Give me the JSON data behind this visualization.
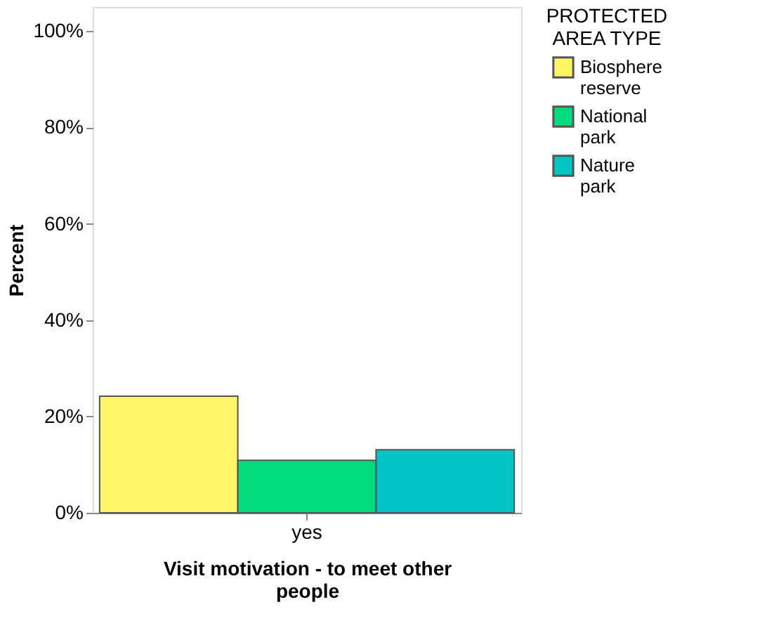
{
  "chart_data": {
    "type": "bar",
    "xlabel": "Visit motivation - to meet other people",
    "ylabel": "Percent",
    "legend_title": "PROTECTED AREA TYPE",
    "categories": [
      "yes"
    ],
    "series": [
      {
        "name": "Biosphere reserve",
        "color": "#fdf566",
        "values": [
          24.2
        ]
      },
      {
        "name": "National park",
        "color": "#00dc7d",
        "values": [
          10.9
        ]
      },
      {
        "name": "Nature park",
        "color": "#00c3c4",
        "values": [
          13.1
        ]
      }
    ],
    "ylim": [
      0,
      105
    ],
    "yticks": [
      {
        "value": 0,
        "label": "0%"
      },
      {
        "value": 20,
        "label": "20%"
      },
      {
        "value": 40,
        "label": "40%"
      },
      {
        "value": 60,
        "label": "60%"
      },
      {
        "value": 80,
        "label": "80%"
      },
      {
        "value": 100,
        "label": "100%"
      }
    ],
    "grid": false,
    "legend": "right"
  }
}
